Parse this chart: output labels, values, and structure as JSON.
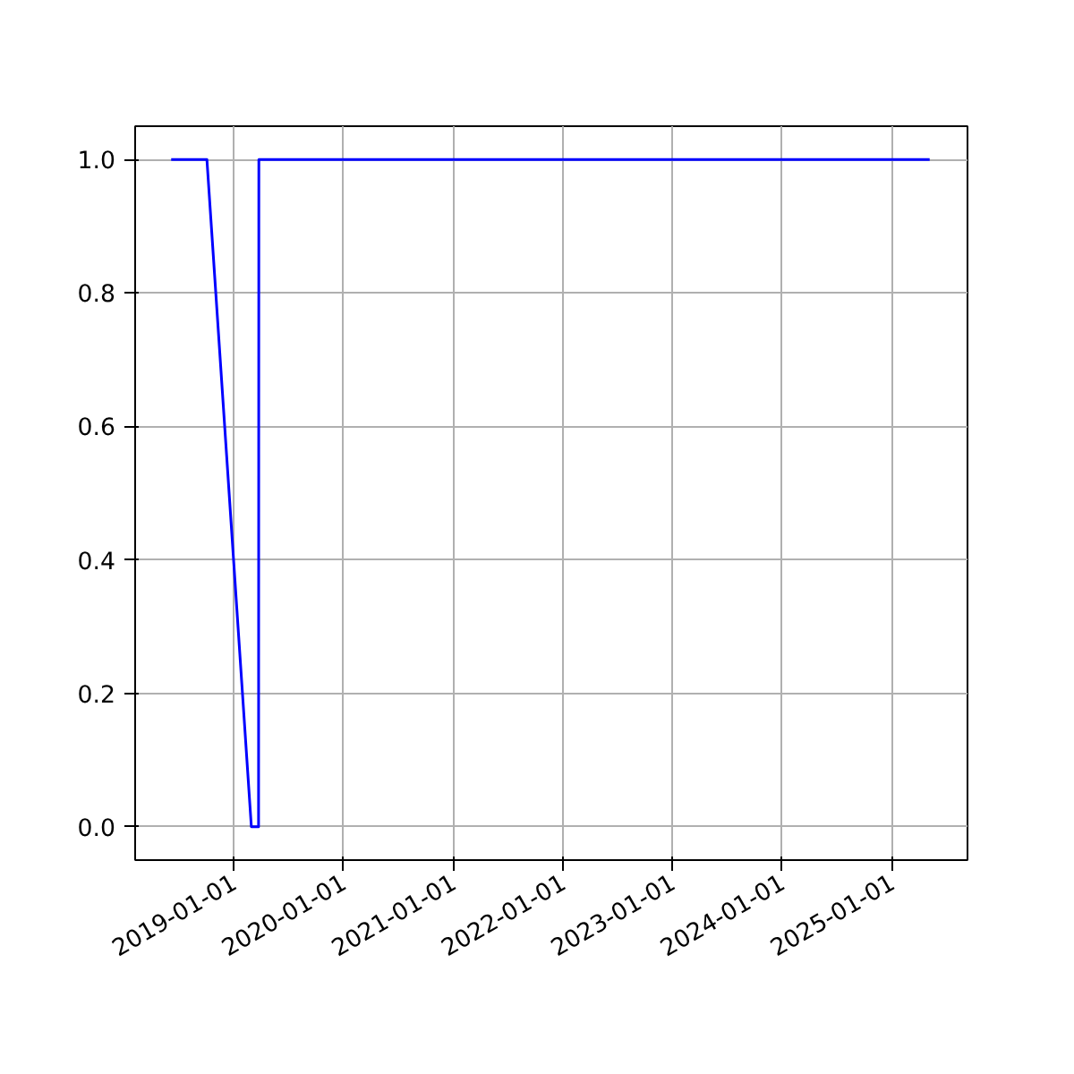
{
  "chart_data": {
    "type": "line",
    "x": [
      "2018-06-06",
      "2018-10-03",
      "2019-02-28",
      "2019-03-24",
      "2019-03-25",
      "2025-05-06"
    ],
    "series": [
      {
        "color": "#0000ff",
        "values": [
          1,
          1,
          0,
          0,
          1,
          1
        ]
      }
    ],
    "xlim": [
      "2018-02-06",
      "2025-09-09"
    ],
    "ylim": [
      -0.05,
      1.05
    ],
    "xticks": [
      "2019-01-01",
      "2020-01-01",
      "2021-01-01",
      "2022-01-01",
      "2023-01-01",
      "2024-01-01",
      "2025-01-01"
    ],
    "yticks": [
      {
        "value": 0,
        "label": "0.0"
      },
      {
        "value": 0.2,
        "label": "0.2"
      },
      {
        "value": 0.4,
        "label": "0.4"
      },
      {
        "value": 0.6,
        "label": "0.6"
      },
      {
        "value": 0.8,
        "label": "0.8"
      },
      {
        "value": 1,
        "label": "1.0"
      }
    ],
    "grid": true
  }
}
